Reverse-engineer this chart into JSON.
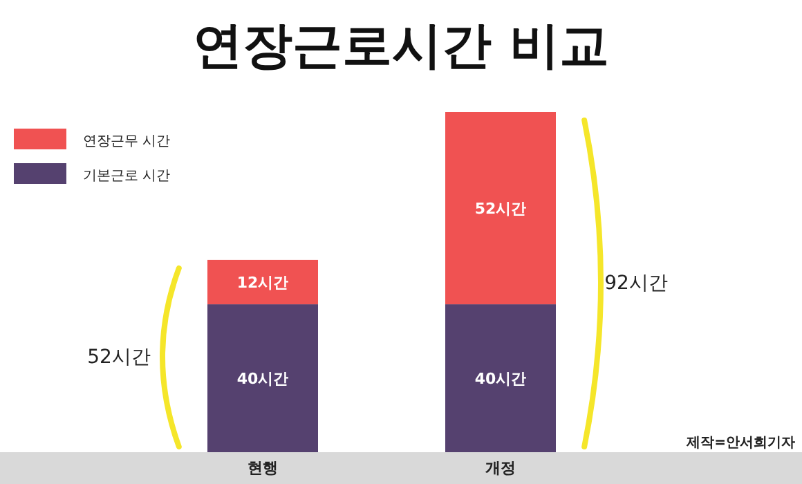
{
  "chart_data": {
    "type": "bar",
    "title": "연장근로시간 비교",
    "stacked": true,
    "legend": "top left",
    "categories": [
      "현행",
      "개정"
    ],
    "series": [
      {
        "name": "기본근로 시간",
        "color": "#55416f",
        "values": [
          40,
          40
        ],
        "value_labels": [
          "40시간",
          "40시간"
        ]
      },
      {
        "name": "연장근무 시간",
        "color": "#f05252",
        "values": [
          12,
          52
        ],
        "value_labels": [
          "12시간",
          "52시간"
        ]
      }
    ],
    "totals": [
      "52시간",
      "92시간"
    ],
    "annotations": [
      "제작=안서희기자"
    ]
  }
}
